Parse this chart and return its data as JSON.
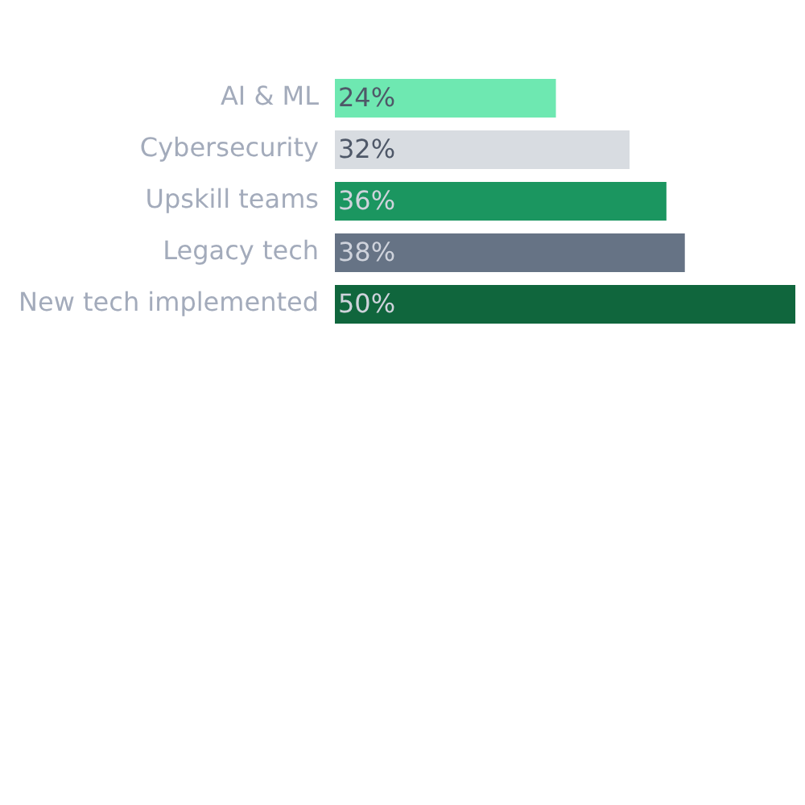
{
  "chart_data": {
    "type": "bar",
    "orientation": "horizontal",
    "categories": [
      "AI & ML",
      "Cybersecurity",
      "Upskill teams",
      "Legacy tech",
      "New tech implemented"
    ],
    "values": [
      24,
      32,
      36,
      38,
      50
    ],
    "colors": [
      "#6ee8b1",
      "#d8dce1",
      "#1b9660",
      "#667385",
      "#10663d"
    ],
    "value_labels": [
      "24%",
      "32%",
      "36%",
      "38%",
      "50%"
    ],
    "xlim": [
      0,
      50
    ],
    "tick_labels": "y",
    "legend": false
  }
}
